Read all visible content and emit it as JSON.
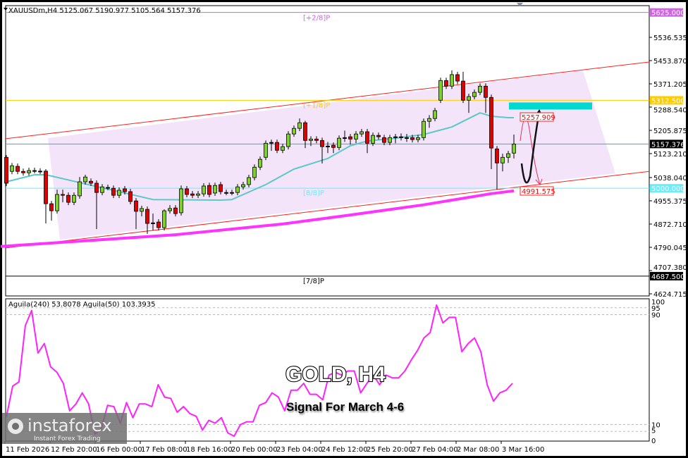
{
  "chart_data": {
    "type": "candlestick",
    "symbol_header": "XAUUSDm,H4  5125.067 5190.977 5105.564 5157.376",
    "price_axis": {
      "ticks": [
        "5536.535",
        "5453.870",
        "5371.205",
        "5288.540",
        "5205.875",
        "5123.210",
        "5038.040",
        "4955.375",
        "4872.710",
        "4790.045",
        "4707.380",
        "4624.715"
      ],
      "ylim": [
        4624.715,
        5625.0
      ]
    },
    "time_axis": {
      "labels": [
        {
          "bar": 0,
          "text": "11 Feb 2026"
        },
        {
          "bar": 8,
          "text": "12 Feb 20:00"
        },
        {
          "bar": 16,
          "text": "16 Feb 00:00"
        },
        {
          "bar": 24,
          "text": "17 Feb 08:00"
        },
        {
          "bar": 32,
          "text": "18 Feb 16:00"
        },
        {
          "bar": 40,
          "text": "20 Feb 00:00"
        },
        {
          "bar": 48,
          "text": "23 Feb 04:00"
        },
        {
          "bar": 56,
          "text": "24 Feb 12:00"
        },
        {
          "bar": 64,
          "text": "25 Feb 20:00"
        },
        {
          "bar": 72,
          "text": "27 Feb 04:00"
        },
        {
          "bar": 80,
          "text": "2 Mar 08:00"
        },
        {
          "bar": 88,
          "text": "3 Mar 16:00"
        }
      ]
    },
    "candles_ohlc": [
      [
        5110,
        5118,
        5008,
        5018
      ],
      [
        5060,
        5090,
        5050,
        5080
      ],
      [
        5078,
        5088,
        5050,
        5060
      ],
      [
        5060,
        5070,
        5045,
        5055
      ],
      [
        5055,
        5073,
        5045,
        5063
      ],
      [
        5063,
        5073,
        5053,
        5063
      ],
      [
        5061,
        5071,
        5051,
        5061
      ],
      [
        5061,
        5068,
        4875,
        4945
      ],
      [
        4945,
        4955,
        4885,
        4920
      ],
      [
        4920,
        4995,
        4910,
        4978
      ],
      [
        4978,
        4995,
        4950,
        4975
      ],
      [
        4975,
        4985,
        4940,
        4950
      ],
      [
        4950,
        4985,
        4940,
        4975
      ],
      [
        4973,
        5040,
        4963,
        5023
      ],
      [
        5023,
        5048,
        5013,
        5040
      ],
      [
        5025,
        5035,
        5008,
        5018
      ],
      [
        5018,
        5028,
        4855,
        4985
      ],
      [
        4985,
        5015,
        4975,
        5005
      ],
      [
        5003,
        5013,
        4993,
        5003
      ],
      [
        5000,
        5010,
        4965,
        4975
      ],
      [
        4975,
        5003,
        4965,
        4993
      ],
      [
        4998,
        5008,
        4978,
        4988
      ],
      [
        4988,
        4998,
        4943,
        4953
      ],
      [
        4955,
        4965,
        4855,
        4918
      ],
      [
        4918,
        4938,
        4900,
        4928
      ],
      [
        4925,
        4935,
        4838,
        4875
      ],
      [
        4877,
        4910,
        4850,
        4877
      ],
      [
        4880,
        4890,
        4850,
        4860
      ],
      [
        4860,
        4925,
        4850,
        4920
      ],
      [
        4920,
        4940,
        4910,
        4928
      ],
      [
        4930,
        4940,
        4900,
        4910
      ],
      [
        4913,
        5010,
        4903,
        4998
      ],
      [
        4998,
        5008,
        4968,
        4978
      ],
      [
        4980,
        4990,
        4965,
        4975
      ],
      [
        4975,
        4990,
        4965,
        4980
      ],
      [
        4980,
        5018,
        4970,
        5008
      ],
      [
        5010,
        5020,
        4968,
        4978
      ],
      [
        4983,
        5020,
        4973,
        5010
      ],
      [
        5013,
        5023,
        4978,
        4988
      ],
      [
        4985,
        4995,
        4975,
        4985
      ],
      [
        4985,
        4995,
        4975,
        4985
      ],
      [
        4985,
        5015,
        4975,
        5005
      ],
      [
        5005,
        5023,
        4995,
        5013
      ],
      [
        5013,
        5048,
        5003,
        5038
      ],
      [
        5038,
        5085,
        5028,
        5075
      ],
      [
        5075,
        5113,
        5065,
        5103
      ],
      [
        5110,
        5170,
        5100,
        5160
      ],
      [
        5163,
        5173,
        5133,
        5163
      ],
      [
        5163,
        5173,
        5125,
        5135
      ],
      [
        5135,
        5158,
        5125,
        5148
      ],
      [
        5148,
        5203,
        5138,
        5193
      ],
      [
        5193,
        5223,
        5183,
        5213
      ],
      [
        5213,
        5248,
        5203,
        5233
      ],
      [
        5233,
        5240,
        5143,
        5170
      ],
      [
        5170,
        5185,
        5150,
        5175
      ],
      [
        5175,
        5185,
        5160,
        5170
      ],
      [
        5170,
        5180,
        5088,
        5148
      ],
      [
        5150,
        5165,
        5125,
        5150
      ],
      [
        5153,
        5163,
        5125,
        5145
      ],
      [
        5145,
        5188,
        5135,
        5178
      ],
      [
        5180,
        5205,
        5165,
        5180
      ],
      [
        5183,
        5193,
        5155,
        5175
      ],
      [
        5175,
        5203,
        5160,
        5193
      ],
      [
        5193,
        5211,
        5183,
        5201
      ],
      [
        5201,
        5211,
        5125,
        5160
      ],
      [
        5160,
        5198,
        5150,
        5188
      ],
      [
        5188,
        5198,
        5173,
        5183
      ],
      [
        5180,
        5190,
        5153,
        5163
      ],
      [
        5163,
        5190,
        5153,
        5180
      ],
      [
        5183,
        5193,
        5160,
        5183
      ],
      [
        5183,
        5195,
        5170,
        5183
      ],
      [
        5180,
        5193,
        5165,
        5180
      ],
      [
        5180,
        5190,
        5163,
        5173
      ],
      [
        5173,
        5190,
        5163,
        5180
      ],
      [
        5180,
        5248,
        5170,
        5238
      ],
      [
        5238,
        5260,
        5215,
        5248
      ],
      [
        5248,
        5286,
        5238,
        5276
      ],
      [
        5313,
        5393,
        5303,
        5383
      ],
      [
        5383,
        5393,
        5353,
        5363
      ],
      [
        5363,
        5419,
        5353,
        5404
      ],
      [
        5404,
        5414,
        5370,
        5381
      ],
      [
        5381,
        5414,
        5303,
        5313
      ],
      [
        5313,
        5336,
        5268,
        5326
      ],
      [
        5326,
        5351,
        5316,
        5341
      ],
      [
        5341,
        5373,
        5331,
        5363
      ],
      [
        5363,
        5373,
        5268,
        5323
      ],
      [
        5323,
        5333,
        5068,
        5143
      ],
      [
        5140,
        5150,
        4995,
        5090
      ],
      [
        5090,
        5123,
        5060,
        5110
      ],
      [
        5110,
        5133,
        5090,
        5123
      ],
      [
        5125,
        5191,
        5106,
        5157
      ]
    ],
    "candle_colors": {
      "up": "#7ed321",
      "down": "#e00000",
      "outline": "#000000"
    },
    "moving_averages": [
      {
        "color": "#5cc8c8",
        "points": [
          [
            0,
            5023
          ],
          [
            5,
            5048
          ],
          [
            7,
            5048
          ],
          [
            26,
            4960
          ],
          [
            38,
            4958
          ],
          [
            40,
            4960
          ],
          [
            46,
            5013
          ],
          [
            51,
            5068
          ],
          [
            57,
            5106
          ],
          [
            61,
            5151
          ],
          [
            64,
            5168
          ],
          [
            69,
            5178
          ],
          [
            74,
            5191
          ],
          [
            79,
            5218
          ],
          [
            84,
            5268
          ],
          [
            86,
            5256
          ],
          [
            89,
            5251
          ],
          [
            90,
            5251
          ]
        ]
      },
      {
        "color": "#ff33ff",
        "points": [
          [
            -1,
            4793
          ],
          [
            30,
            4835
          ],
          [
            49,
            4873
          ],
          [
            61,
            4905
          ],
          [
            74,
            4941
          ],
          [
            86,
            4981
          ],
          [
            90,
            4991
          ]
        ]
      }
    ],
    "horizontal_levels": [
      {
        "price": 5625.0,
        "label": "[+2/8]P",
        "axis_label": "5625.000",
        "color": "#cc66dd"
      },
      {
        "price": 5312.5,
        "label": "[+1/8]P",
        "axis_label": "5312.500",
        "color": "#ffcc00"
      },
      {
        "price": 5157.376,
        "label": "",
        "axis_label": "5157.376",
        "color": "#8090a0",
        "current": true
      },
      {
        "price": 5000.0,
        "label": "[8/8]P",
        "axis_label": "5000.000",
        "color": "#66eeff"
      },
      {
        "price": 4687.5,
        "label": "[7/8]P",
        "axis_label": "4687.500",
        "color": "#000000"
      }
    ],
    "channel_lines": {
      "color": "#ff2020",
      "upper": [
        [
          0,
          5176
        ],
        [
          114,
          5449
        ]
      ],
      "lower": [
        [
          0,
          4788
        ],
        [
          114,
          5060
        ]
      ]
    },
    "target_zone": {
      "price_top": 5305,
      "price_bottom": 5280,
      "color": "#00d8d0"
    },
    "price_tags": [
      "5257.909",
      "4991.575"
    ],
    "indicator": {
      "header": "Aguila(240) 53.8078  Aguila(50) 103.3935",
      "ylim": [
        0,
        100
      ],
      "levels": [
        100,
        95,
        90,
        10,
        5,
        0
      ],
      "level_labels": [
        "100",
        "95",
        "90",
        "10",
        "5",
        "0"
      ],
      "color": "#ff22ff",
      "values": [
        15.5,
        38,
        41,
        82,
        93,
        62,
        69,
        52,
        48,
        40,
        20,
        25,
        33,
        25,
        3,
        7,
        24,
        23,
        11,
        26,
        15,
        25,
        25,
        23,
        39,
        30,
        29,
        19,
        23,
        18,
        16,
        6,
        13,
        11,
        15,
        4,
        1.5,
        10,
        12,
        12,
        24,
        26,
        33,
        30,
        20,
        35,
        35,
        40,
        32,
        32,
        28,
        46,
        48,
        46,
        49,
        49,
        33,
        40,
        46,
        39,
        46,
        44,
        44,
        49,
        57,
        64,
        73,
        77,
        97,
        84,
        88,
        88,
        63,
        69,
        73,
        63,
        39,
        27,
        33,
        35,
        40
      ]
    },
    "annotations": {
      "title": "GOLD, H4",
      "subtitle": "Signal For March 4-6"
    }
  },
  "watermark": {
    "brand": "instaforex",
    "tagline": "Instant Forex Trading"
  }
}
